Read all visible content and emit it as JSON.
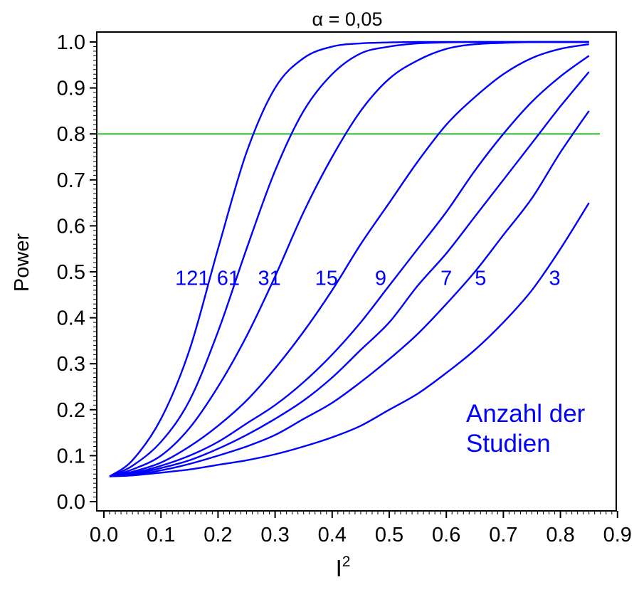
{
  "chart_data": {
    "type": "line",
    "title": "α = 0,05",
    "xlabel": "I",
    "xlabel_superscript": "2",
    "ylabel": "Power",
    "xlim": [
      0.0,
      0.9
    ],
    "ylim": [
      0.0,
      1.0
    ],
    "x_ticks": [
      "0.0",
      "0.1",
      "0.2",
      "0.3",
      "0.4",
      "0.5",
      "0.6",
      "0.7",
      "0.8",
      "0.9"
    ],
    "y_ticks": [
      "0.0",
      "0.1",
      "0.2",
      "0.3",
      "0.4",
      "0.5",
      "0.6",
      "0.7",
      "0.8",
      "0.9",
      "1.0"
    ],
    "grid": false,
    "reference_line": {
      "y": 0.8,
      "color": "#00c000"
    },
    "curve_color": "#0000ff",
    "legend_title": [
      "Anzahl der",
      "Studien"
    ],
    "x": [
      0.01,
      0.05,
      0.1,
      0.15,
      0.2,
      0.25,
      0.3,
      0.35,
      0.4,
      0.45,
      0.5,
      0.55,
      0.6,
      0.65,
      0.7,
      0.75,
      0.8,
      0.85
    ],
    "series": [
      {
        "name": "121",
        "values": [
          0.055,
          0.09,
          0.18,
          0.33,
          0.55,
          0.76,
          0.9,
          0.965,
          0.99,
          0.997,
          0.999,
          1.0,
          1.0,
          1.0,
          1.0,
          1.0,
          1.0,
          1.0
        ]
      },
      {
        "name": "61",
        "values": [
          0.055,
          0.078,
          0.13,
          0.22,
          0.37,
          0.55,
          0.72,
          0.85,
          0.93,
          0.975,
          0.99,
          0.997,
          0.999,
          1.0,
          1.0,
          1.0,
          1.0,
          1.0
        ]
      },
      {
        "name": "31",
        "values": [
          0.055,
          0.07,
          0.1,
          0.16,
          0.25,
          0.36,
          0.49,
          0.63,
          0.75,
          0.85,
          0.92,
          0.96,
          0.985,
          0.995,
          0.998,
          1.0,
          1.0,
          1.0
        ]
      },
      {
        "name": "15",
        "values": [
          0.055,
          0.065,
          0.085,
          0.12,
          0.165,
          0.22,
          0.29,
          0.37,
          0.46,
          0.56,
          0.65,
          0.74,
          0.82,
          0.88,
          0.93,
          0.965,
          0.985,
          0.995
        ]
      },
      {
        "name": "9",
        "values": [
          0.055,
          0.062,
          0.078,
          0.1,
          0.13,
          0.17,
          0.21,
          0.26,
          0.32,
          0.39,
          0.47,
          0.55,
          0.63,
          0.72,
          0.8,
          0.87,
          0.925,
          0.97
        ]
      },
      {
        "name": "7",
        "values": [
          0.055,
          0.06,
          0.073,
          0.09,
          0.115,
          0.145,
          0.18,
          0.22,
          0.27,
          0.33,
          0.39,
          0.47,
          0.54,
          0.62,
          0.7,
          0.78,
          0.86,
          0.935
        ]
      },
      {
        "name": "5",
        "values": [
          0.055,
          0.058,
          0.068,
          0.082,
          0.1,
          0.12,
          0.145,
          0.18,
          0.215,
          0.26,
          0.31,
          0.365,
          0.43,
          0.5,
          0.58,
          0.66,
          0.76,
          0.85
        ]
      },
      {
        "name": "3",
        "values": [
          0.055,
          0.057,
          0.063,
          0.07,
          0.08,
          0.09,
          0.103,
          0.12,
          0.14,
          0.165,
          0.2,
          0.235,
          0.28,
          0.33,
          0.39,
          0.46,
          0.55,
          0.65
        ]
      }
    ],
    "series_label_y": 0.49,
    "series_label_x": [
      0.155,
      0.218,
      0.29,
      0.39,
      0.485,
      0.6,
      0.66,
      0.79
    ]
  }
}
